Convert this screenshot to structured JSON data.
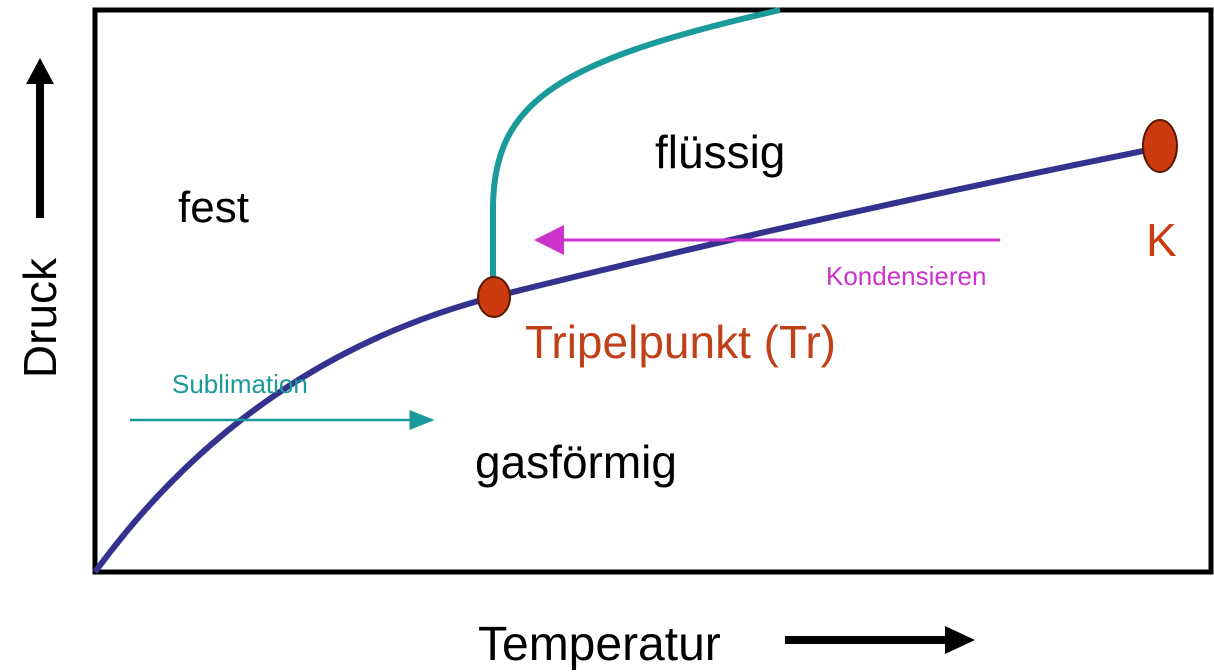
{
  "regions": {
    "solid": "fest",
    "liquid": "flüssig",
    "gas": "gasförmig"
  },
  "points": {
    "triple": "Tripelpunkt (Tr)",
    "critical": "K"
  },
  "arrows": {
    "condense": "Kondensieren",
    "sublimate": "Sublimation"
  },
  "axes": {
    "y": "Druck",
    "x": "Temperatur"
  }
}
